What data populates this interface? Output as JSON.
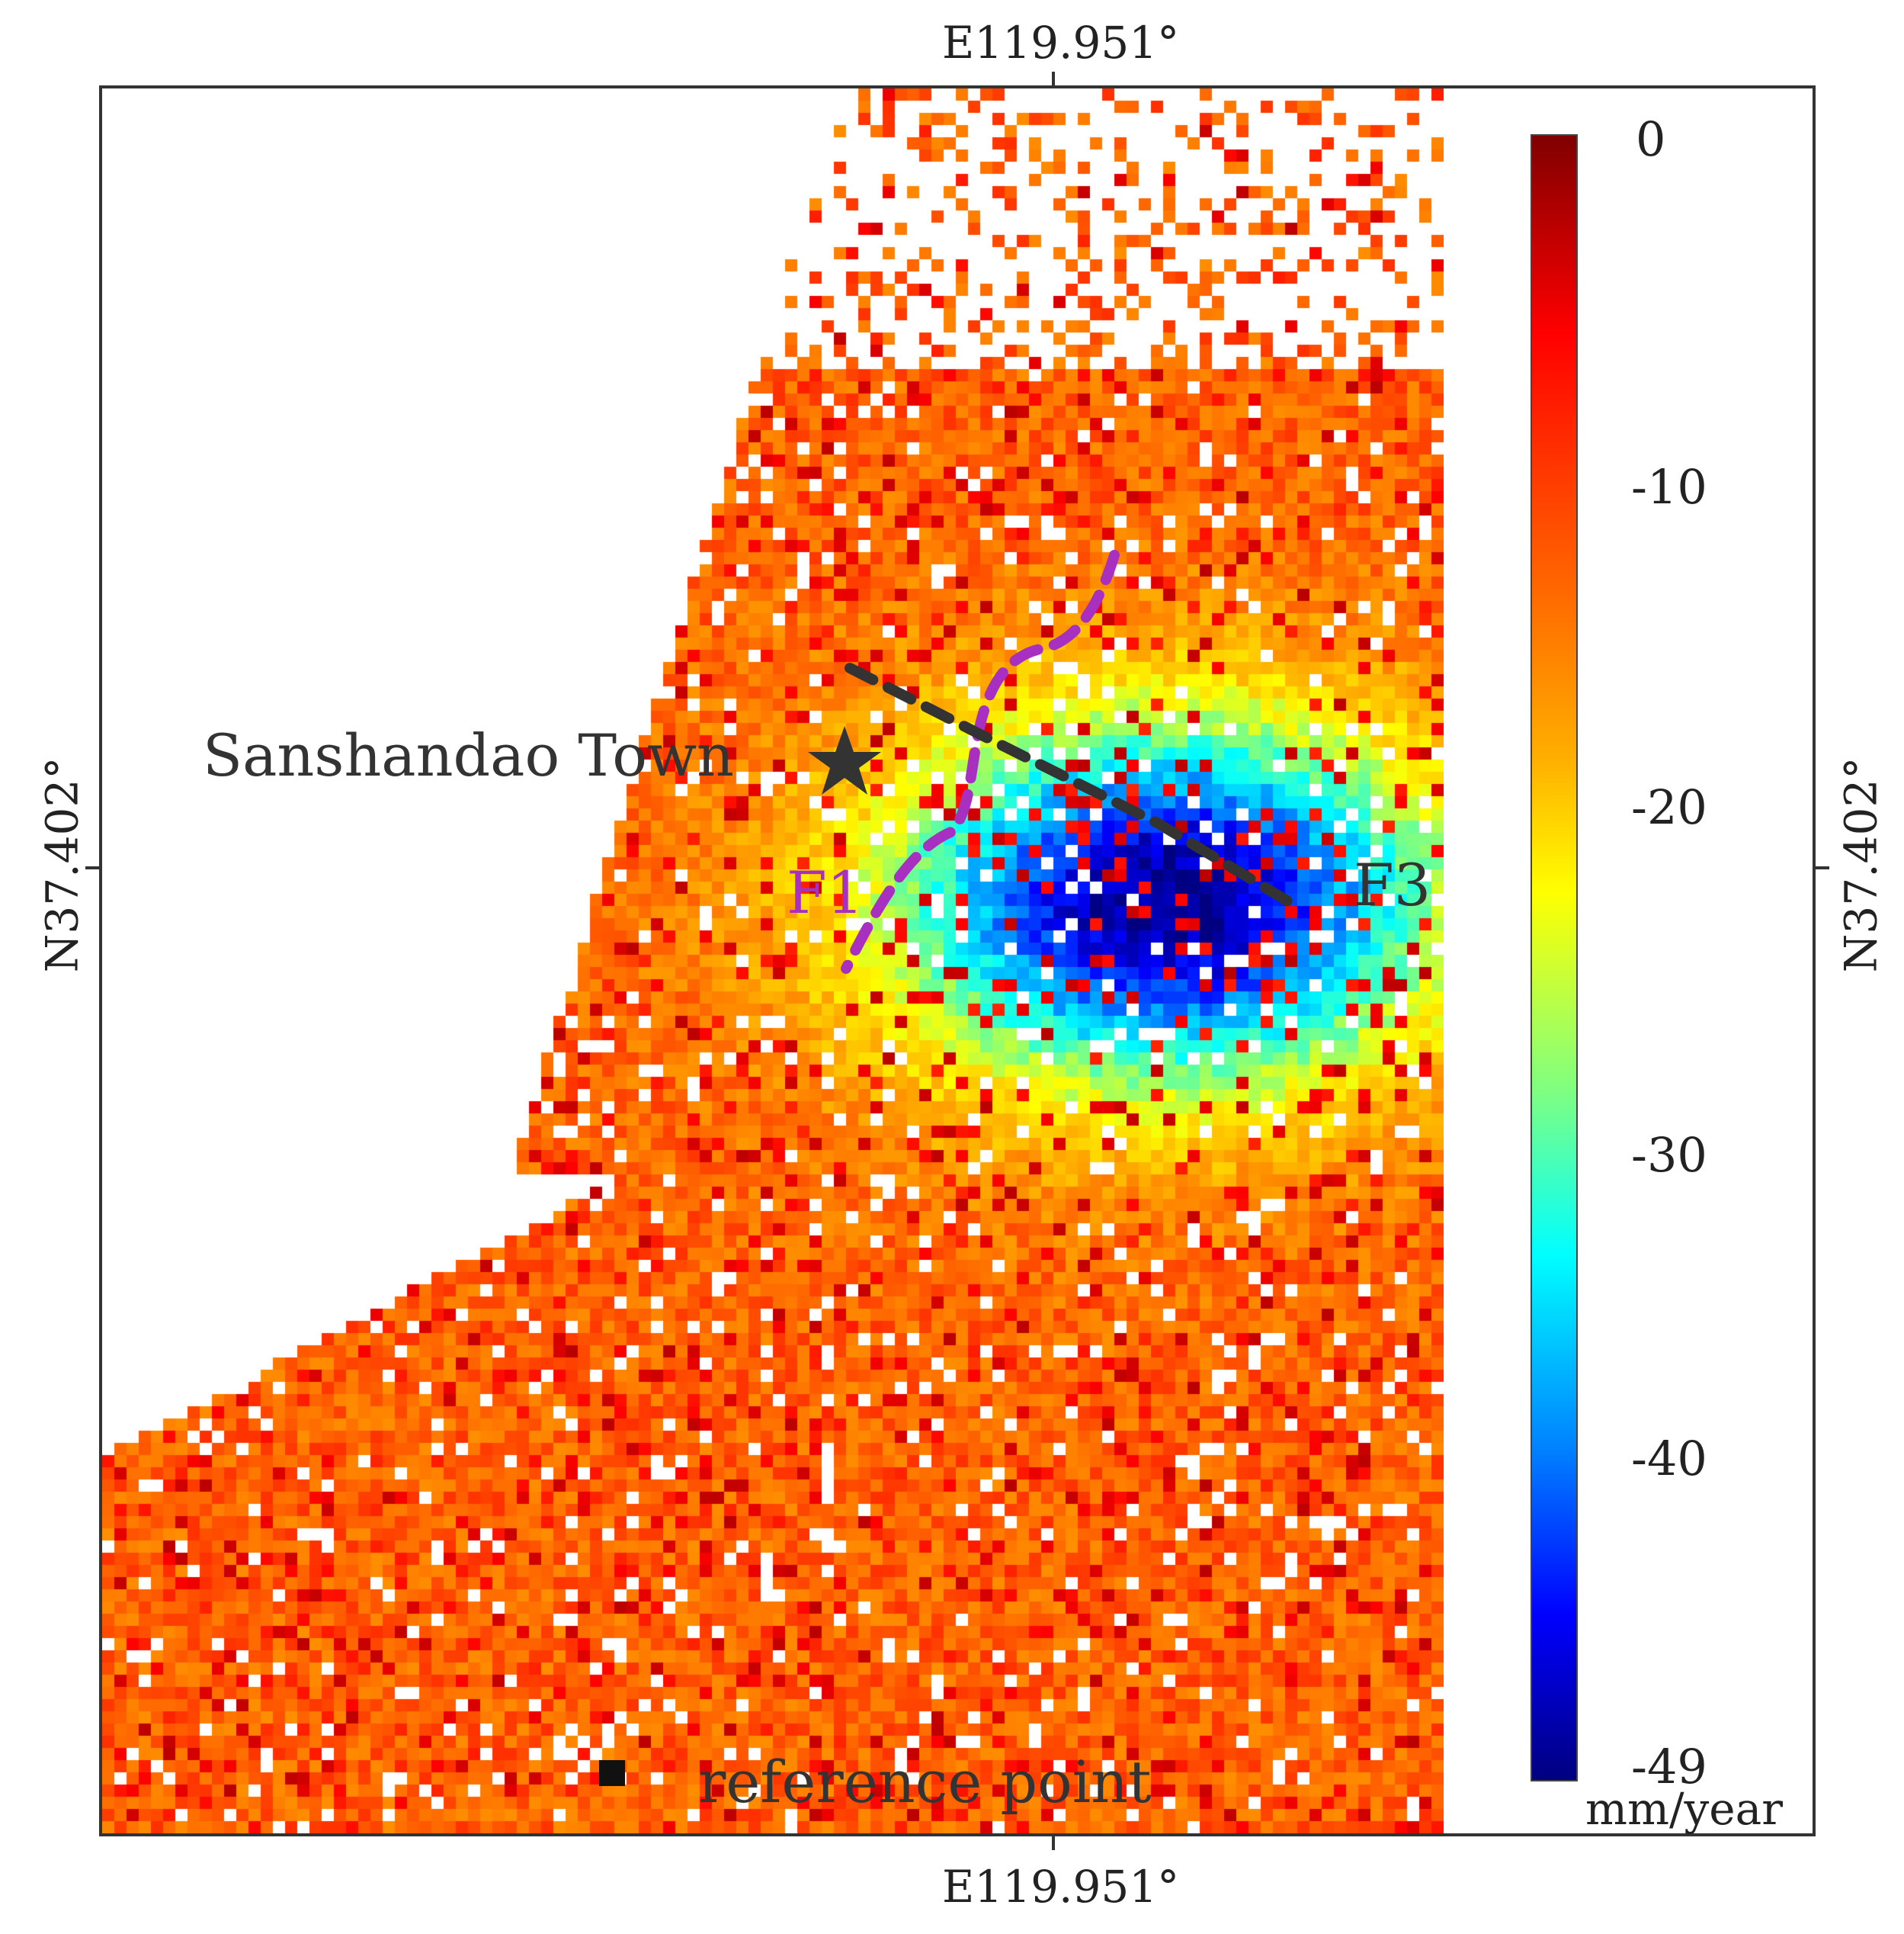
{
  "map": {
    "top_lon": "E119.951°",
    "bottom_lon": "E119.951°",
    "left_lat": "N37.402°",
    "right_lat": "N37.402°",
    "colorbar": {
      "ticks": [
        "0",
        "-10",
        "-20",
        "-30",
        "-40",
        "-49"
      ],
      "unit": "mm/year",
      "min": -49,
      "max": 0,
      "colors": [
        "#800000",
        "#ff0000",
        "#ff6a00",
        "#ffb000",
        "#ffff00",
        "#80ff80",
        "#00ffff",
        "#0080ff",
        "#0000ff",
        "#000080"
      ]
    },
    "annotations": {
      "town": "Sanshandao Town",
      "fault_f1": "F1",
      "fault_f3": "F3",
      "reference": "reference point"
    },
    "subsidence_center_value": -49
  }
}
